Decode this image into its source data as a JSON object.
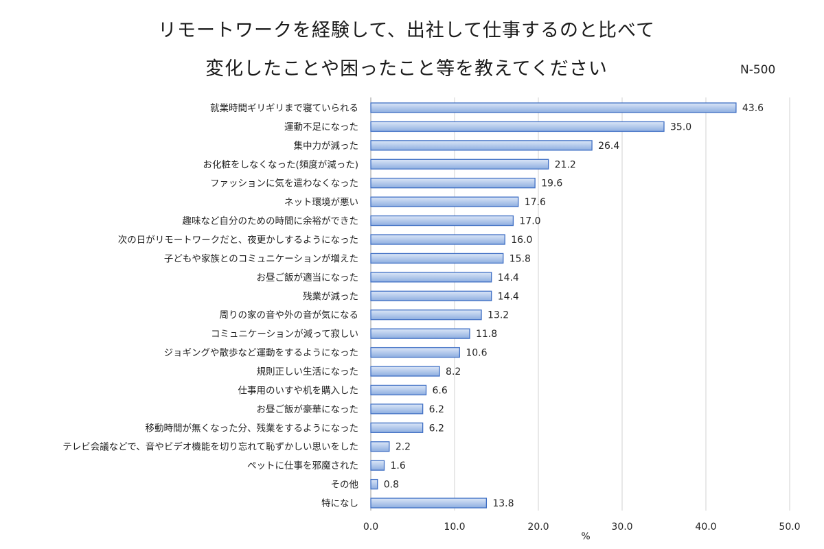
{
  "title_line1": "リモートワークを経験して、出社して仕事するのと比べて",
  "title_line2": "変化したことや困ったこと等を教えてください",
  "sample_size": "N-500",
  "colors": {
    "bar_fill_top": "#dbe6f7",
    "bar_fill_bottom": "#8eaee0",
    "bar_stroke": "#3f6fc4",
    "grid": "#d0d0d0"
  },
  "chart_data": {
    "type": "bar",
    "orientation": "horizontal",
    "title": "リモートワークを経験して、出社して仕事するのと比べて変化したことや困ったこと等を教えてください",
    "xlabel": "%",
    "ylabel": "",
    "xlim": [
      0,
      50
    ],
    "ticks": [
      "0.0",
      "10.0",
      "20.0",
      "30.0",
      "40.0",
      "50.0"
    ],
    "grid": true,
    "categories": [
      "就業時間ギリギリまで寝ていられる",
      "運動不足になった",
      "集中力が減った",
      "お化粧をしなくなった(頻度が減った)",
      "ファッションに気を遣わなくなった",
      "ネット環境が悪い",
      "趣味など自分のための時間に余裕ができた",
      "次の日がリモートワークだと、夜更かしするようになった",
      "子どもや家族とのコミュニケーションが増えた",
      "お昼ご飯が適当になった",
      "残業が減った",
      "周りの家の音や外の音が気になる",
      "コミュニケーションが減って寂しい",
      "ジョギングや散歩など運動をするようになった",
      "規則正しい生活になった",
      "仕事用のいすや机を購入した",
      "お昼ご飯が豪華になった",
      "移動時間が無くなった分、残業をするようになった",
      "テレビ会議などで、音やビデオ機能を切り忘れて恥ずかしい思いをした",
      "ペットに仕事を邪魔された",
      "その他",
      "特になし"
    ],
    "values": [
      43.6,
      35.0,
      26.4,
      21.2,
      19.6,
      17.6,
      17.0,
      16.0,
      15.8,
      14.4,
      14.4,
      13.2,
      11.8,
      10.6,
      8.2,
      6.6,
      6.2,
      6.2,
      2.2,
      1.6,
      0.8,
      13.8
    ],
    "value_labels": [
      "43.6",
      "35.0",
      "26.4",
      "21.2",
      "19.6",
      "17.6",
      "17.0",
      "16.0",
      "15.8",
      "14.4",
      "14.4",
      "13.2",
      "11.8",
      "10.6",
      "8.2",
      "6.6",
      "6.2",
      "6.2",
      "2.2",
      "1.6",
      "0.8",
      "13.8"
    ]
  }
}
